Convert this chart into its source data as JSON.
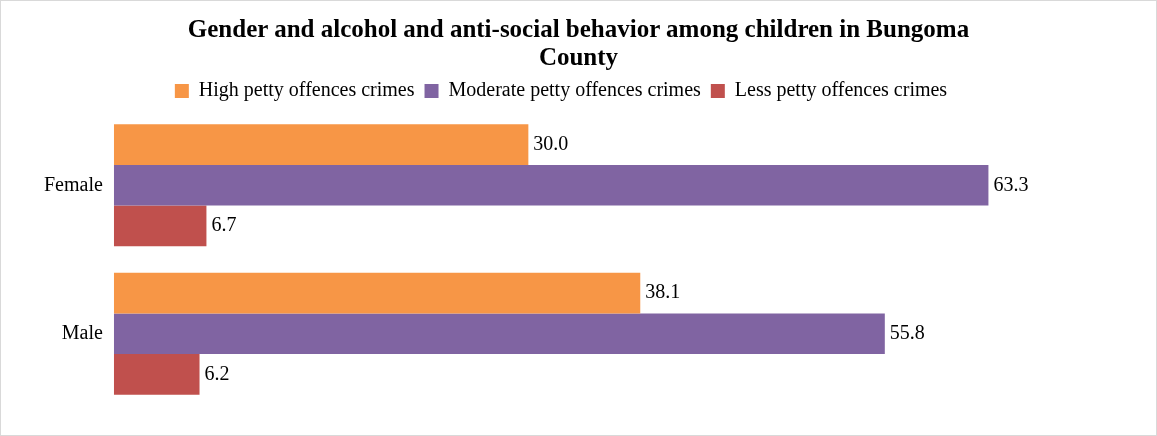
{
  "chart_data": {
    "type": "bar",
    "orientation": "horizontal",
    "title": "Gender and alcohol and anti-social behavior among children in Bungoma County",
    "categories": [
      "Female",
      "Male"
    ],
    "series": [
      {
        "name": "High petty offences crimes",
        "color": "#f79646",
        "values": [
          30.0,
          38.1
        ],
        "value_labels": [
          "30.0",
          "38.1"
        ]
      },
      {
        "name": "Moderate petty offences crimes",
        "color": "#8064a2",
        "values": [
          63.3,
          55.8
        ],
        "value_labels": [
          "63.3",
          "55.8"
        ]
      },
      {
        "name": "Less petty offences crimes",
        "color": "#c0504d",
        "values": [
          6.7,
          6.2
        ],
        "value_labels": [
          "6.7",
          "6.2"
        ]
      }
    ],
    "legend": "top",
    "grid": false
  }
}
